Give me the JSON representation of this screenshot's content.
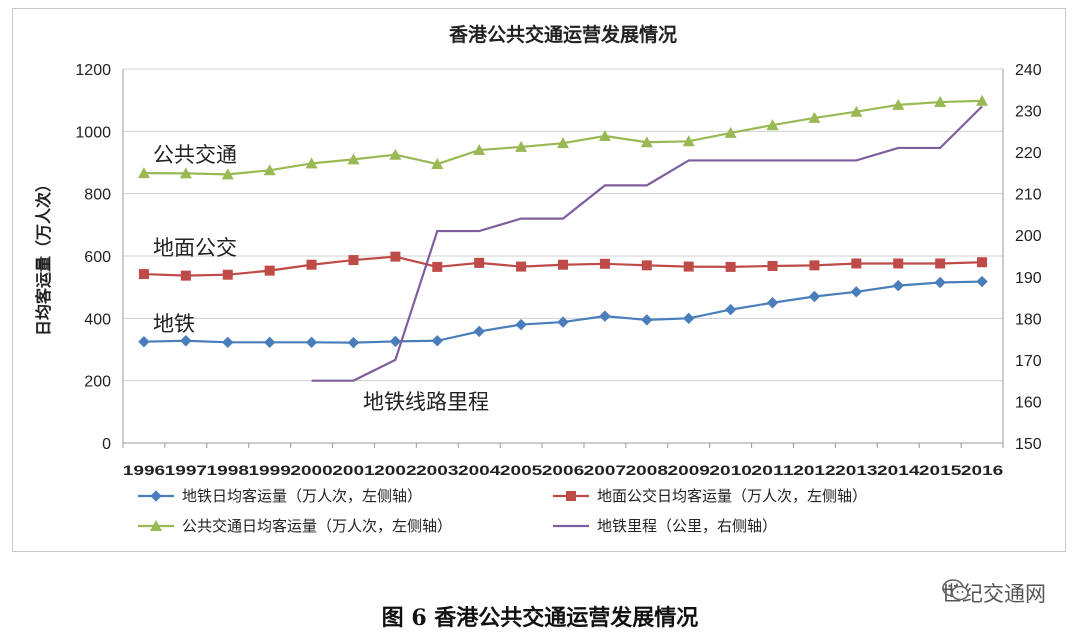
{
  "caption": "图 6  香港公共交通运营发展情况",
  "watermark": "世纪交通网",
  "chart_data": {
    "type": "line",
    "title": "香港公共交通运营发展情况",
    "ylabel": "日均客运量（万人次）",
    "y2label": "",
    "ylim": [
      0,
      1200
    ],
    "y2lim": [
      150,
      240
    ],
    "yticks": [
      0,
      200,
      400,
      600,
      800,
      1000,
      1200
    ],
    "y2ticks": [
      150,
      160,
      170,
      180,
      190,
      200,
      210,
      220,
      230,
      240
    ],
    "categories": [
      "1996",
      "1997",
      "1998",
      "1999",
      "2000",
      "2001",
      "2002",
      "2003",
      "2004",
      "2005",
      "2006",
      "2007",
      "2008",
      "2009",
      "2010",
      "2011",
      "2012",
      "2013",
      "2014",
      "2015",
      "2016"
    ],
    "grid": "horizontal",
    "legend_position": "bottom",
    "series": [
      {
        "name": "地铁日均客运量（万人次，左侧轴）",
        "axis": "left",
        "marker": "diamond",
        "color": "#4a7ebb",
        "label": "地铁",
        "values": [
          325,
          328,
          323,
          323,
          323,
          322,
          326,
          328,
          358,
          380,
          388,
          407,
          395,
          400,
          428,
          450,
          470,
          485,
          505,
          515,
          518
        ]
      },
      {
        "name": "地面公交日均客运量（万人次，左侧轴）",
        "axis": "left",
        "marker": "square",
        "color": "#be4b48",
        "label": "地面公交",
        "values": [
          542,
          537,
          540,
          553,
          572,
          587,
          598,
          565,
          578,
          566,
          572,
          575,
          570,
          566,
          565,
          568,
          570,
          576,
          576,
          576,
          580
        ]
      },
      {
        "name": "公共交通日均客运量（万人次，左侧轴）",
        "axis": "left",
        "marker": "triangle",
        "color": "#98b954",
        "label": "公共交通",
        "values": [
          866,
          865,
          862,
          875,
          897,
          910,
          925,
          895,
          940,
          950,
          962,
          985,
          965,
          968,
          995,
          1020,
          1043,
          1063,
          1085,
          1094,
          1098
        ]
      },
      {
        "name": "地铁里程（公里，右侧轴）",
        "axis": "right",
        "marker": "none",
        "color": "#7d5fa0",
        "label": "地铁线路里程",
        "values": [
          null,
          null,
          null,
          null,
          165,
          165,
          170,
          201,
          201,
          204,
          204,
          212,
          212,
          218,
          218,
          218,
          218,
          218,
          221,
          221,
          231
        ]
      }
    ]
  }
}
